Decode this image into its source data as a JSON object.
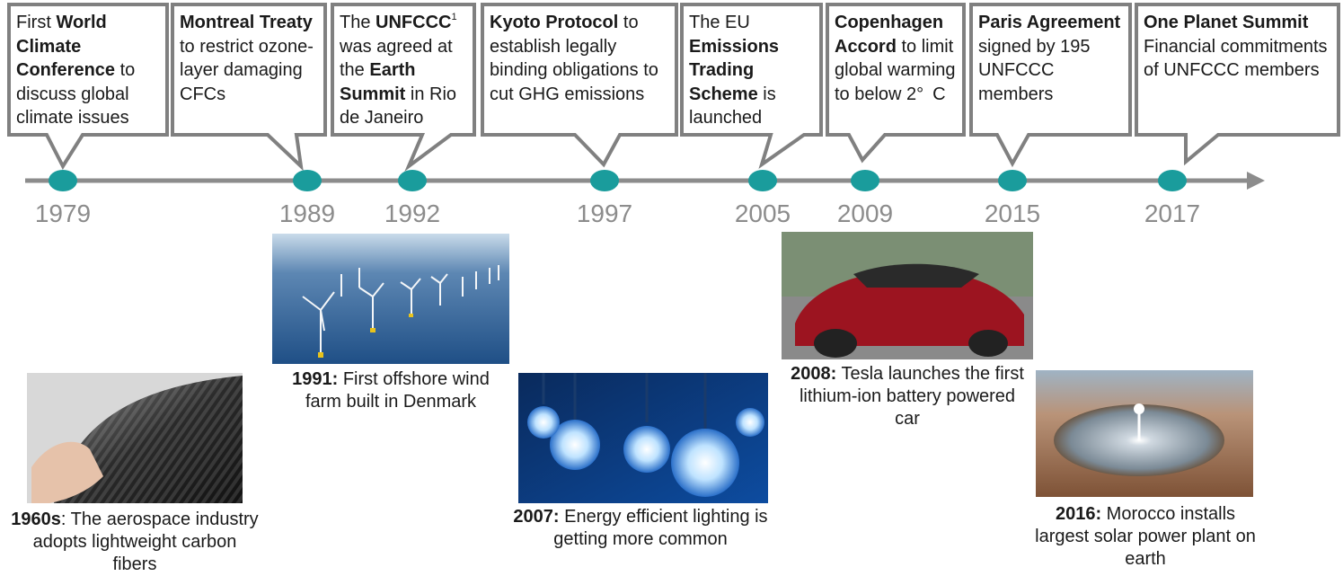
{
  "events": [
    {
      "year": "1979",
      "text": [
        {
          "text": "First "
        },
        {
          "text": "World Climate Conference",
          "bold": true
        },
        {
          "text": " to discuss global climate issues"
        }
      ]
    },
    {
      "year": "1989",
      "text": [
        {
          "text": "Montreal Treaty",
          "bold": true
        },
        {
          "text": " to restrict ozone-layer damaging CFCs"
        }
      ]
    },
    {
      "year": "1992",
      "text": [
        {
          "text": "The "
        },
        {
          "text": "UNFCCC",
          "bold": true
        },
        {
          "text": "1",
          "sup": true
        },
        {
          "text": " was agreed at the "
        },
        {
          "text": "Earth Summit",
          "bold": true
        },
        {
          "text": " in Rio de Janeiro"
        }
      ]
    },
    {
      "year": "1997",
      "text": [
        {
          "text": "Kyoto Protocol",
          "bold": true
        },
        {
          "text": " to establish legally binding obligations to cut GHG emissions"
        }
      ]
    },
    {
      "year": "2005",
      "text": [
        {
          "text": "The EU "
        },
        {
          "text": "Emissions Trading Scheme",
          "bold": true
        },
        {
          "text": " is launched"
        }
      ]
    },
    {
      "year": "2009",
      "text": [
        {
          "text": "Copenhagen Accord",
          "bold": true
        },
        {
          "text": " to limit global warming to below 2° C"
        }
      ]
    },
    {
      "year": "2015",
      "text": [
        {
          "text": "Paris Agreement",
          "bold": true
        },
        {
          "text": " signed by 195 UNFCCC members"
        }
      ]
    },
    {
      "year": "2017",
      "text": [
        {
          "text": "One Planet Summit",
          "bold": true
        },
        {
          "text": " Financial commitments of UNFCCC members"
        }
      ]
    }
  ],
  "photos": [
    {
      "caption": [
        {
          "text": "1960s",
          "bold": true
        },
        {
          "text": ": The aerospace industry adopts lightweight carbon fibers"
        }
      ]
    },
    {
      "caption": [
        {
          "text": "1991:",
          "bold": true
        },
        {
          "text": " First offshore wind farm built in Denmark"
        }
      ]
    },
    {
      "caption": [
        {
          "text": "2007:",
          "bold": true
        },
        {
          "text": " Energy efficient lighting is getting more common"
        }
      ]
    },
    {
      "caption": [
        {
          "text": "2008:",
          "bold": true
        },
        {
          "text": " Tesla launches the first lithium-ion battery powered car"
        }
      ]
    },
    {
      "caption": [
        {
          "text": "2016:",
          "bold": true
        },
        {
          "text": " Morocco installs largest solar power plant on earth"
        }
      ]
    }
  ]
}
